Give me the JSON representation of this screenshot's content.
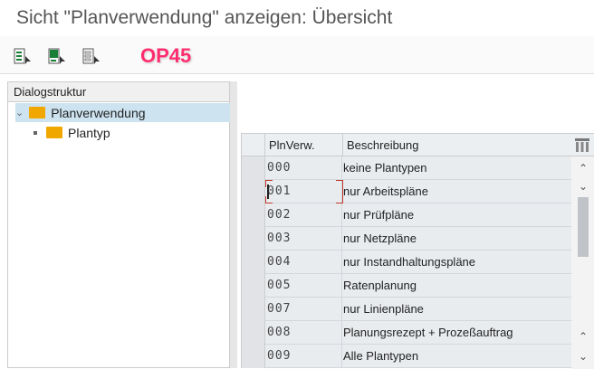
{
  "title": "Sicht \"Planverwendung\" anzeigen: Übersicht",
  "toolbar": {
    "transaction_code": "OP45",
    "buttons": [
      "select-all-icon",
      "select-block-icon",
      "deselect-all-icon"
    ]
  },
  "dialog": {
    "header": "Dialogstruktur",
    "nodes": [
      {
        "label": "Planverwendung",
        "selected": true
      },
      {
        "label": "Plantyp"
      }
    ]
  },
  "table": {
    "columns": [
      "PlnVerw.",
      "Beschreibung"
    ],
    "rows": [
      {
        "code": "000",
        "desc": "keine Plantypen"
      },
      {
        "code": "001",
        "desc": "nur Arbeitspläne"
      },
      {
        "code": "002",
        "desc": "nur Prüfpläne"
      },
      {
        "code": "003",
        "desc": "nur Netzpläne"
      },
      {
        "code": "004",
        "desc": "nur Instandhaltungspläne"
      },
      {
        "code": "005",
        "desc": "Ratenplanung"
      },
      {
        "code": "007",
        "desc": "nur Linienpläne"
      },
      {
        "code": "008",
        "desc": "Planungsrezept + Prozeßauftrag"
      },
      {
        "code": "009",
        "desc": "Alle Plantypen"
      }
    ]
  },
  "colors": {
    "selected_node": "#cde3f0",
    "tcode": "#ff2d6f",
    "folder": "#f0a800"
  }
}
